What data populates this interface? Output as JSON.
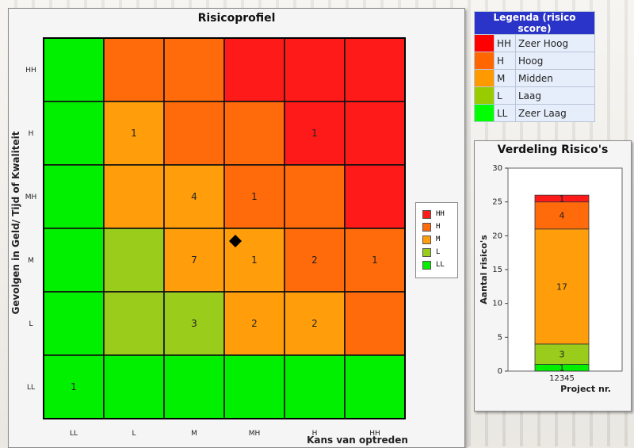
{
  "chart_data": [
    {
      "type": "heatmap",
      "title": "Risicoprofiel",
      "xlabel": "Kans van optreden",
      "ylabel": "Gevolgen in Geld/ Tijd of Kwaliteit",
      "x_categories": [
        "LL",
        "L",
        "M",
        "MH",
        "H",
        "HH"
      ],
      "y_categories": [
        "HH",
        "H",
        "MH",
        "M",
        "L",
        "LL"
      ],
      "cell_levels": [
        [
          "LL",
          "H",
          "H",
          "HH",
          "HH",
          "HH"
        ],
        [
          "LL",
          "M",
          "H",
          "H",
          "HH",
          "HH"
        ],
        [
          "LL",
          "M",
          "M",
          "H",
          "H",
          "HH"
        ],
        [
          "LL",
          "L",
          "M",
          "M",
          "H",
          "H"
        ],
        [
          "LL",
          "L",
          "L",
          "M",
          "M",
          "H"
        ],
        [
          "LL",
          "LL",
          "LL",
          "LL",
          "LL",
          "LL"
        ]
      ],
      "values": [
        [
          null,
          null,
          null,
          null,
          null,
          null
        ],
        [
          null,
          1,
          null,
          null,
          1,
          null
        ],
        [
          null,
          null,
          4,
          1,
          null,
          null
        ],
        [
          null,
          null,
          7,
          1,
          2,
          1
        ],
        [
          null,
          null,
          3,
          2,
          2,
          null
        ],
        [
          1,
          null,
          null,
          null,
          null,
          null
        ]
      ],
      "marker": {
        "x": "MH",
        "y": "M",
        "shape": "diamond"
      },
      "legend": [
        "HH",
        "H",
        "M",
        "L",
        "LL"
      ],
      "legend_placement": "right"
    },
    {
      "type": "bar",
      "stacked": true,
      "title": "Verdeling Risico's",
      "xlabel": "Project nr.",
      "ylabel": "Aantal risico's",
      "categories": [
        "12345"
      ],
      "ylim": [
        0,
        30
      ],
      "yticks": [
        0,
        5,
        10,
        15,
        20,
        25,
        30
      ],
      "series": [
        {
          "name": "LL",
          "values": [
            1
          ]
        },
        {
          "name": "L",
          "values": [
            3
          ]
        },
        {
          "name": "M",
          "values": [
            17
          ]
        },
        {
          "name": "H",
          "values": [
            4
          ]
        },
        {
          "name": "HH",
          "values": [
            1
          ]
        }
      ]
    }
  ],
  "legend_table": {
    "title": "Legenda (risico score)",
    "rows": [
      {
        "code": "HH",
        "label": "Zeer Hoog",
        "color": "#ff0000"
      },
      {
        "code": "H",
        "label": "Hoog",
        "color": "#ff6600"
      },
      {
        "code": "M",
        "label": "Midden",
        "color": "#ff9900"
      },
      {
        "code": "L",
        "label": "Laag",
        "color": "#99cc00"
      },
      {
        "code": "LL",
        "label": "Zeer Laag",
        "color": "#00ff00"
      }
    ]
  },
  "colors": {
    "HH": "#ff1a1a",
    "H": "#ff6a0a",
    "M": "#ff9e0a",
    "L": "#9acc1c",
    "LL": "#00f000"
  }
}
